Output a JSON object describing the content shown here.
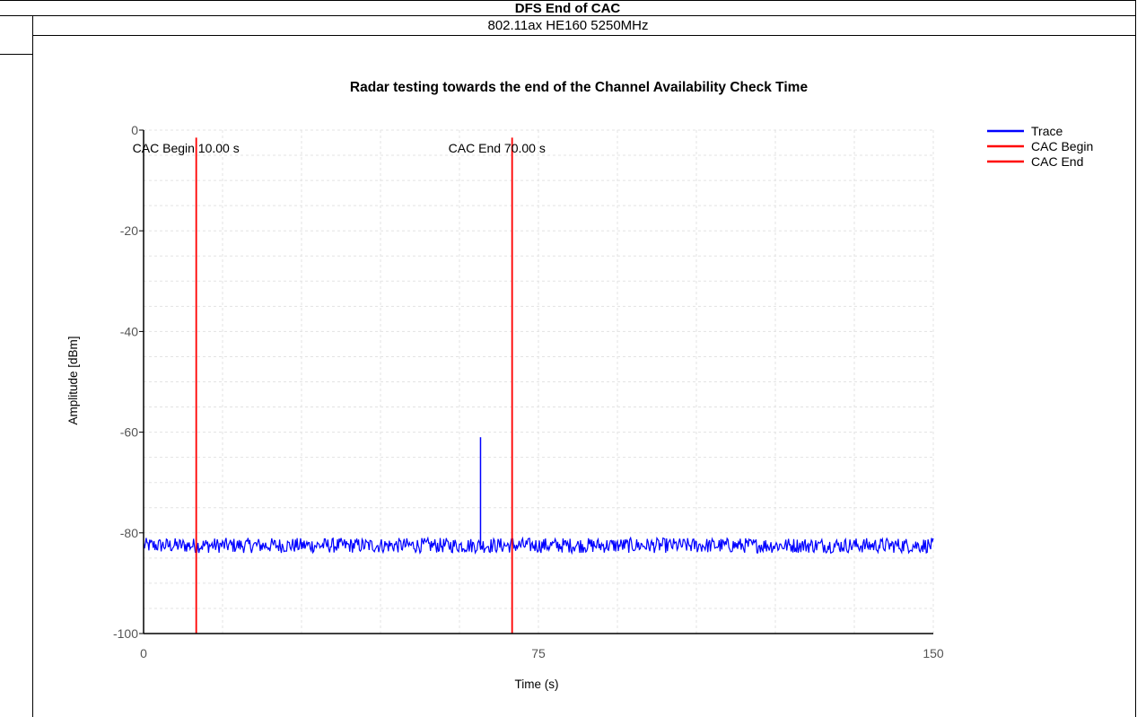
{
  "report": {
    "header": "DFS End of CAC",
    "subheader": "802.11ax HE160 5250MHz"
  },
  "chart_data": {
    "type": "line",
    "title": "Radar testing towards the end of the Channel Availability Check Time",
    "xlabel": "Time (s)",
    "ylabel": "Amplitude [dBm]",
    "xlim": [
      0,
      150
    ],
    "ylim": [
      -100,
      0
    ],
    "xticks": [
      "0",
      "75",
      "150"
    ],
    "yticks": [
      "0",
      "-20",
      "-40",
      "-60",
      "-80",
      "-100"
    ],
    "grid": "dashed",
    "legend_position": "top-right",
    "series": [
      {
        "name": "Trace",
        "color": "#0000ff",
        "noise_floor_dbm": -82.5,
        "noise_band_dbm": [
          -84,
          -81
        ],
        "x_range": [
          0,
          150
        ],
        "spike": {
          "x": 64,
          "y": -61
        }
      },
      {
        "name": "CAC Begin",
        "color": "#ff0000",
        "x": 10,
        "label": "CAC Begin 10.00 s"
      },
      {
        "name": "CAC End",
        "color": "#ff0000",
        "x": 70,
        "label": "CAC End 70.00 s"
      }
    ]
  }
}
